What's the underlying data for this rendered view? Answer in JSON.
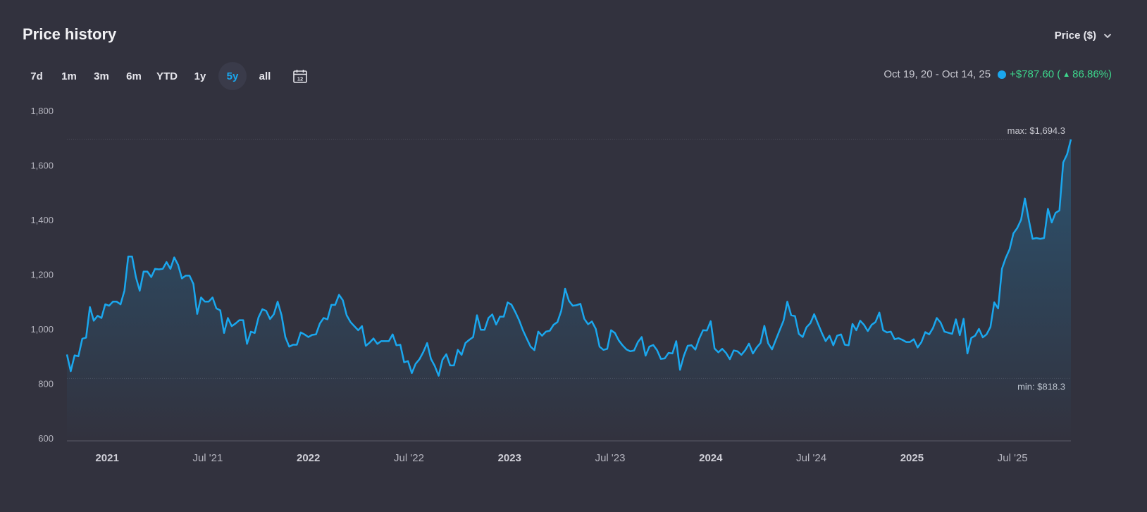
{
  "header": {
    "title": "Price history"
  },
  "metric_select": {
    "label": "Price ($)"
  },
  "ranges": [
    {
      "label": "7d",
      "active": false
    },
    {
      "label": "1m",
      "active": false
    },
    {
      "label": "3m",
      "active": false
    },
    {
      "label": "6m",
      "active": false
    },
    {
      "label": "YTD",
      "active": false
    },
    {
      "label": "1y",
      "active": false
    },
    {
      "label": "5y",
      "active": true
    },
    {
      "label": "all",
      "active": false
    }
  ],
  "calendar": {
    "icon": "calendar-icon",
    "day": "12"
  },
  "summary": {
    "date_range": "Oct 19, 20 - Oct 14, 25",
    "change_abs": "+$787.60",
    "change_pct": "86.86%"
  },
  "colors": {
    "line": "#1aa7ee",
    "positive": "#3dd68c",
    "background": "#32323e"
  },
  "chart_data": {
    "type": "area",
    "ylim": [
      600,
      1800
    ],
    "y_ticks": [
      "600",
      "800",
      "1,000",
      "1,200",
      "1,400",
      "1,600",
      "1,800"
    ],
    "x_ticks": [
      {
        "label": "2021",
        "year": true,
        "t": 2021.0
      },
      {
        "label": "Jul '21",
        "year": false,
        "t": 2021.5
      },
      {
        "label": "2022",
        "year": true,
        "t": 2022.0
      },
      {
        "label": "Jul '22",
        "year": false,
        "t": 2022.5
      },
      {
        "label": "2023",
        "year": true,
        "t": 2023.0
      },
      {
        "label": "Jul '23",
        "year": false,
        "t": 2023.5
      },
      {
        "label": "2024",
        "year": true,
        "t": 2024.0
      },
      {
        "label": "Jul '24",
        "year": false,
        "t": 2024.5
      },
      {
        "label": "2025",
        "year": true,
        "t": 2025.0
      },
      {
        "label": "Jul '25",
        "year": false,
        "t": 2025.5
      }
    ],
    "xlim": [
      2020.8,
      2025.79
    ],
    "max_label": "max: $1,694.3",
    "min_label": "min: $818.3",
    "max_value": 1694.3,
    "min_value": 818.3,
    "series": [
      {
        "values": [
          906,
          845,
          903,
          900,
          964,
          968,
          1080,
          1030,
          1048,
          1040,
          1090,
          1085,
          1100,
          1100,
          1090,
          1140,
          1265,
          1265,
          1190,
          1140,
          1210,
          1210,
          1190,
          1220,
          1218,
          1220,
          1245,
          1220,
          1262,
          1235,
          1185,
          1195,
          1195,
          1165,
          1055,
          1115,
          1100,
          1100,
          1115,
          1075,
          1068,
          985,
          1040,
          1010,
          1020,
          1032,
          1032,
          945,
          990,
          985,
          1042,
          1072,
          1066,
          1036,
          1054,
          1100,
          1050,
          970,
          935,
          942,
          942,
          987,
          980,
          970,
          978,
          980,
          1020,
          1040,
          1035,
          1088,
          1088,
          1125,
          1105,
          1050,
          1025,
          1010,
          995,
          1010,
          938,
          950,
          965,
          945,
          955,
          955,
          955,
          980,
          940,
          942,
          878,
          882,
          838,
          872,
          889,
          915,
          948,
          890,
          864,
          828,
          887,
          907,
          866,
          866,
          923,
          905,
          948,
          960,
          970,
          1050,
          997,
          997,
          1040,
          1053,
          1016,
          1045,
          1045,
          1097,
          1089,
          1062,
          1032,
          995,
          964,
          935,
          922,
          990,
          975,
          990,
          993,
          1015,
          1025,
          1066,
          1147,
          1103,
          1085,
          1087,
          1092,
          1037,
          1017,
          1027,
          1000,
          935,
          923,
          927,
          995,
          985,
          958,
          940,
          925,
          918,
          921,
          952,
          970,
          902,
          935,
          941,
          922,
          890,
          892,
          912,
          910,
          955,
          850,
          902,
          938,
          940,
          924,
          964,
          995,
          994,
          1028,
          928,
          914,
          927,
          912,
          889,
          921,
          918,
          905,
          922,
          946,
          910,
          932,
          948,
          1011,
          947,
          925,
          960,
          995,
          1030,
          1100,
          1050,
          1047,
          982,
          970,
          1006,
          1021,
          1054,
          1019,
          985,
          955,
          975,
          940,
          975,
          980,
          942,
          940,
          1018,
          995,
          1030,
          1015,
          992,
          1015,
          1025,
          1060,
          995,
          987,
          990,
          962,
          966,
          960,
          952,
          952,
          962,
          932,
          952,
          988,
          980,
          1003,
          1040,
          1023,
          990,
          986,
          982,
          1035,
          977,
          1037,
          910,
          967,
          975,
          1000,
          969,
          980,
          1007,
          1097,
          1075,
          1220,
          1260,
          1292,
          1350,
          1370,
          1400,
          1478,
          1400,
          1330,
          1333,
          1330,
          1333,
          1440,
          1390,
          1425,
          1434,
          1610,
          1640,
          1694.3
        ]
      }
    ]
  }
}
